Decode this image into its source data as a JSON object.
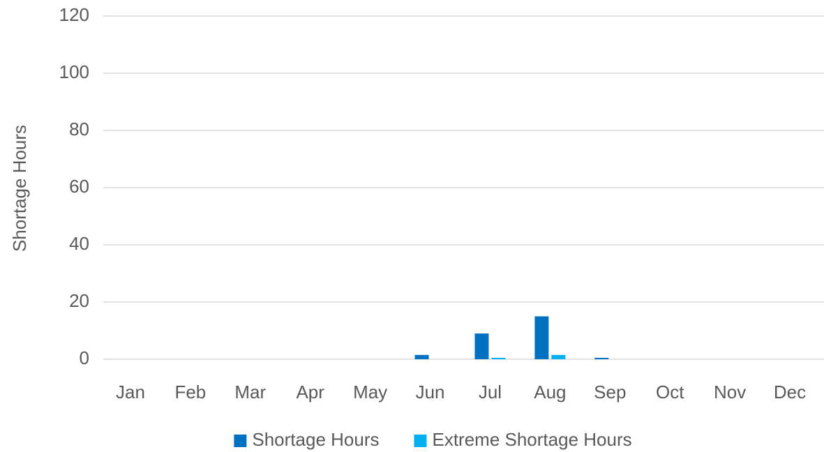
{
  "chart_data": {
    "type": "bar",
    "y_label": "Shortage Hours",
    "categories": [
      "Jan",
      "Feb",
      "Mar",
      "Apr",
      "May",
      "Jun",
      "Jul",
      "Aug",
      "Sep",
      "Oct",
      "Nov",
      "Dec"
    ],
    "series": [
      {
        "name": "Shortage Hours",
        "color": "#0070c0",
        "values": [
          0,
          0,
          0,
          0,
          0,
          1.5,
          9,
          15,
          0.5,
          0,
          0,
          0
        ]
      },
      {
        "name": "Extreme Shortage Hours",
        "color": "#00b0f0",
        "values": [
          0,
          0,
          0,
          0,
          0,
          0,
          0.5,
          1.5,
          0,
          0,
          0,
          0
        ]
      }
    ],
    "ylim": [
      0,
      120
    ],
    "yticks": [
      0,
      20,
      40,
      60,
      80,
      100,
      120
    ],
    "grid": true,
    "legend": "bottom"
  }
}
